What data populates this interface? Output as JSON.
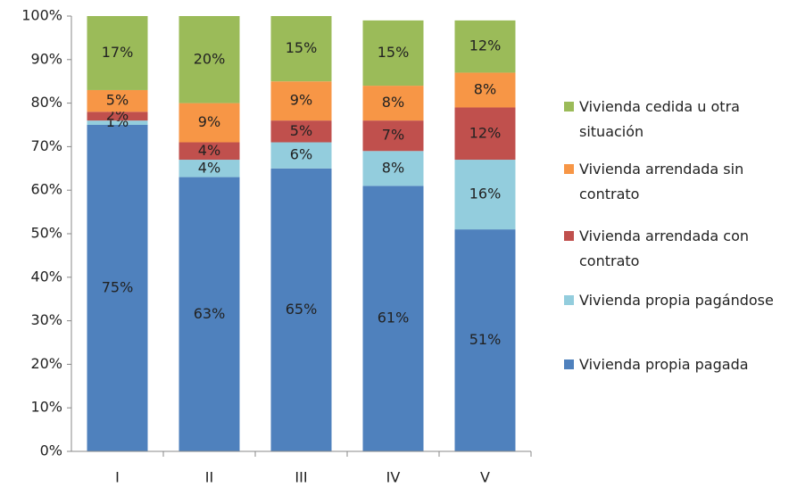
{
  "chart_data": {
    "type": "stacked_bar",
    "categories": [
      "I",
      "II",
      "III",
      "IV",
      "V"
    ],
    "series": [
      {
        "name": "Vivienda propia pagada",
        "color": "#4f81bd",
        "values": [
          75,
          63,
          65,
          61,
          51
        ],
        "value_labels": [
          "75%",
          "63%",
          "65%",
          "61%",
          "51%"
        ]
      },
      {
        "name": "Vivienda propia pagándose",
        "color": "#93cddd",
        "values": [
          1,
          4,
          6,
          8,
          16
        ],
        "value_labels": [
          "1%",
          "4%",
          "6%",
          "8%",
          "16%"
        ]
      },
      {
        "name": "Vivienda arrendada con contrato",
        "color": "#c0504d",
        "values": [
          2,
          4,
          5,
          7,
          12
        ],
        "value_labels": [
          "2%",
          "4%",
          "5%",
          "7%",
          "12%"
        ]
      },
      {
        "name": "Vivienda arrendada sin contrato",
        "color": "#f79646",
        "values": [
          5,
          9,
          9,
          8,
          8
        ],
        "value_labels": [
          "5%",
          "9%",
          "9%",
          "8%",
          "8%"
        ]
      },
      {
        "name": "Vivienda cedida u otra situación",
        "color": "#9bbb59",
        "values": [
          17,
          20,
          15,
          15,
          12
        ],
        "value_labels": [
          "17%",
          "20%",
          "15%",
          "15%",
          "12%"
        ]
      }
    ],
    "ylim": [
      0,
      100
    ],
    "yticks": [
      {
        "value": 0,
        "label": "0%"
      },
      {
        "value": 10,
        "label": "10%"
      },
      {
        "value": 20,
        "label": "20%"
      },
      {
        "value": 30,
        "label": "30%"
      },
      {
        "value": 40,
        "label": "40%"
      },
      {
        "value": 50,
        "label": "50%"
      },
      {
        "value": 60,
        "label": "60%"
      },
      {
        "value": 70,
        "label": "70%"
      },
      {
        "value": 80,
        "label": "80%"
      },
      {
        "value": 90,
        "label": "90%"
      },
      {
        "value": 100,
        "label": "100%"
      }
    ],
    "legend_position": "right"
  }
}
